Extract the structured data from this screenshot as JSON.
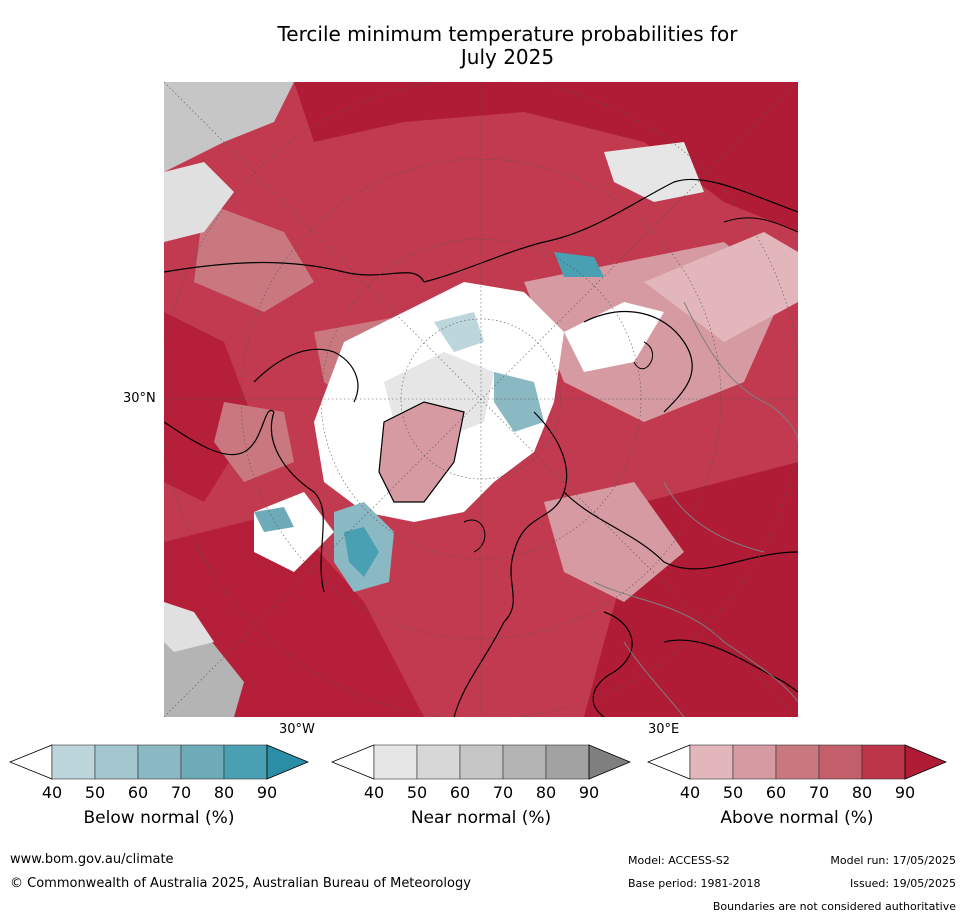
{
  "title": {
    "line1": "Tercile minimum temperature probabilities for",
    "line2": "July 2025"
  },
  "map": {
    "lat_label": "30°N",
    "lon_labels": [
      "30°W",
      "30°E"
    ]
  },
  "colorbars": [
    {
      "title": "Below normal (%)",
      "ticks": [
        "40",
        "50",
        "60",
        "70",
        "80",
        "90"
      ],
      "colors": [
        "#bcd6dc",
        "#a4c7cf",
        "#8bb9c3",
        "#6cabb7",
        "#48a0b2",
        "#2a8fa6"
      ]
    },
    {
      "title": "Near normal (%)",
      "ticks": [
        "40",
        "50",
        "60",
        "70",
        "80",
        "90"
      ],
      "colors": [
        "#e6e6e6",
        "#d7d7d7",
        "#c6c6c6",
        "#b4b4b4",
        "#a2a2a2",
        "#7f7f7f"
      ]
    },
    {
      "title": "Above normal (%)",
      "ticks": [
        "40",
        "50",
        "60",
        "70",
        "80",
        "90"
      ],
      "colors": [
        "#e3b6bb",
        "#d59aa2",
        "#c97880",
        "#c25f6a",
        "#bc3548",
        "#b01c35"
      ]
    }
  ],
  "footer": {
    "website": "www.bom.gov.au/climate",
    "copyright": "© Commonwealth of Australia 2025, Australian Bureau of Meteorology",
    "model": "Model: ACCESS-S2",
    "base_period": "Base period: 1981-2018",
    "model_run": "Model run: 17/05/2025",
    "issued": "Issued: 19/05/2025",
    "disclaimer": "Boundaries are not considered authoritative"
  }
}
